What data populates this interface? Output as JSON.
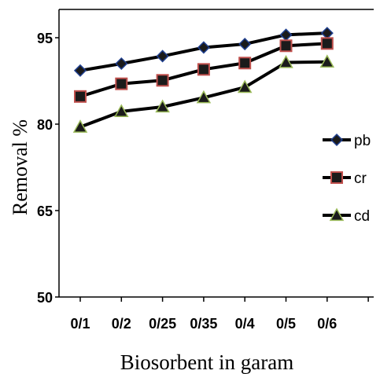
{
  "chart_data": {
    "type": "line",
    "xlabel": "Biosorbent  in garam",
    "ylabel": "Removal %",
    "categories": [
      "0/1",
      "0/2",
      "0/25",
      "0/35",
      "0/4",
      "0/5",
      "0/6"
    ],
    "ylim": [
      50,
      95
    ],
    "yticks": [
      50,
      65,
      80,
      95
    ],
    "grid": false,
    "legend_position": "right",
    "series": [
      {
        "name": "pb",
        "marker": "diamond",
        "color": "#1f3f8f",
        "values": [
          89.3,
          90.5,
          91.8,
          93.3,
          93.9,
          95.5,
          95.8
        ]
      },
      {
        "name": "cr",
        "marker": "square",
        "color": "#c0504d",
        "values": [
          84.8,
          87.0,
          87.6,
          89.5,
          90.6,
          93.6,
          94.0
        ]
      },
      {
        "name": "cd",
        "marker": "triangle",
        "color": "#9bbb59",
        "values": [
          79.5,
          82.2,
          83.0,
          84.6,
          86.4,
          90.7,
          90.8
        ]
      }
    ]
  }
}
